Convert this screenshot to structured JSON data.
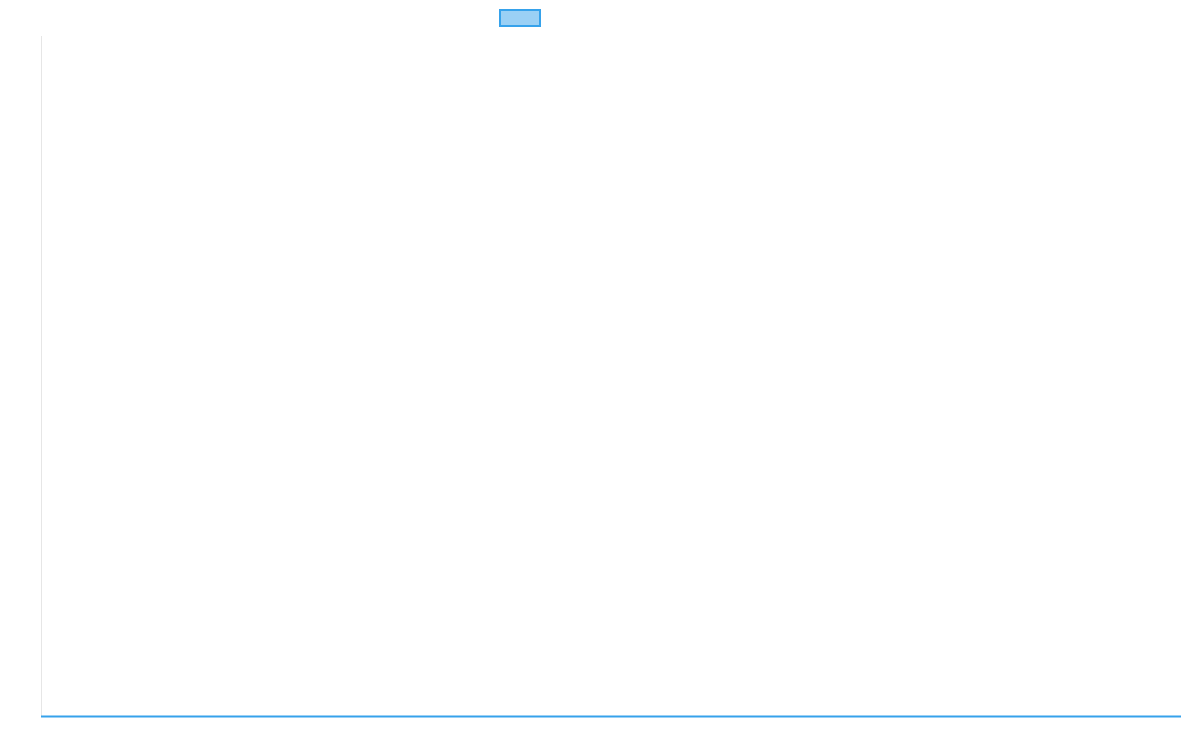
{
  "chart_data": {
    "type": "line",
    "title": "",
    "xlabel": "",
    "ylabel": "",
    "categories": [],
    "series": [
      {
        "label": "",
        "values": [],
        "color": "#36a2eb",
        "fill": "rgba(54,162,235,0.5)"
      }
    ],
    "legend": {
      "position": "top",
      "label": ""
    },
    "grid": false,
    "axis_color": "#e6e6e6"
  }
}
